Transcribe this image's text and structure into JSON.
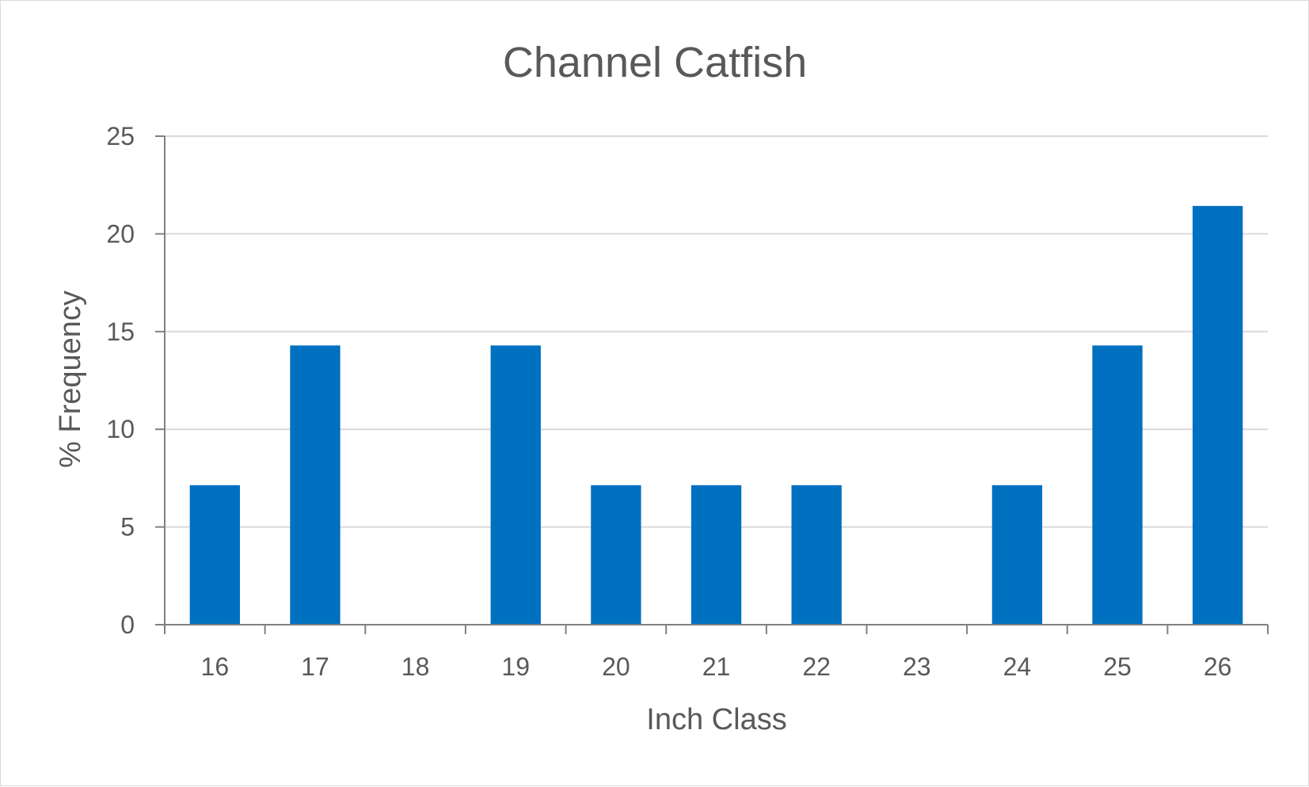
{
  "chart_data": {
    "type": "bar",
    "title": "Channel Catfish",
    "xlabel": "Inch Class",
    "ylabel": "% Frequency",
    "categories": [
      "16",
      "17",
      "18",
      "19",
      "20",
      "21",
      "22",
      "23",
      "24",
      "25",
      "26"
    ],
    "values": [
      7.14,
      14.29,
      0,
      14.29,
      7.14,
      7.14,
      7.14,
      0,
      7.14,
      14.29,
      21.43
    ],
    "ylim": [
      0,
      25
    ],
    "yticks": [
      "0",
      "5",
      "10",
      "15",
      "20",
      "25"
    ],
    "grid": true,
    "legend": "none",
    "colors": {
      "bar": "#0070c0",
      "gridline": "#d9d9d9",
      "axis": "#808080",
      "text": "#595959"
    }
  }
}
